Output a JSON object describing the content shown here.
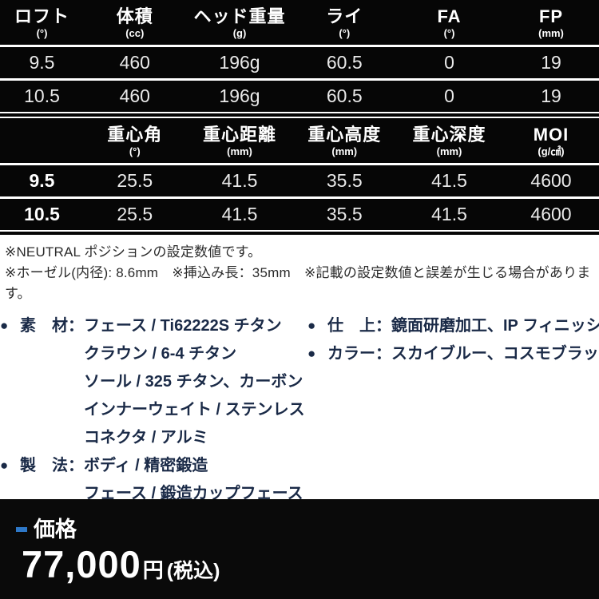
{
  "colors": {
    "table_background": "#060606",
    "table_text": "#e9e9e9",
    "header_text": "#ffffff",
    "row_divider": "#ffffff",
    "note_text": "#2b2b2b",
    "spec_text_navy": "#1a2a47",
    "price_band_background": "#0a0a0a",
    "accent_blue": "#2e78c8"
  },
  "table1": {
    "headers": [
      {
        "label": "ロフト",
        "unit": "(°)"
      },
      {
        "label": "体積",
        "unit": "(cc)"
      },
      {
        "label": "ヘッド重量",
        "unit": "(g)"
      },
      {
        "label": "ライ",
        "unit": "(°)"
      },
      {
        "label": "FA",
        "unit": "(°)"
      },
      {
        "label": "FP",
        "unit": "(mm)"
      }
    ],
    "rows": [
      [
        "9.5",
        "460",
        "196g",
        "60.5",
        "0",
        "19"
      ],
      [
        "10.5",
        "460",
        "196g",
        "60.5",
        "0",
        "19"
      ]
    ]
  },
  "table2": {
    "headers": [
      {
        "label": "",
        "unit": ""
      },
      {
        "label": "重心角",
        "unit": "(°)"
      },
      {
        "label": "重心距離",
        "unit": "(mm)"
      },
      {
        "label": "重心高度",
        "unit": "(mm)"
      },
      {
        "label": "重心深度",
        "unit": "(mm)"
      },
      {
        "label": "MOI",
        "unit": "(g/㎠)"
      }
    ],
    "rows": [
      [
        "9.5",
        "25.5",
        "41.5",
        "35.5",
        "41.5",
        "4600"
      ],
      [
        "10.5",
        "25.5",
        "41.5",
        "35.5",
        "41.5",
        "4600"
      ]
    ]
  },
  "notes": [
    "※NEUTRAL ポジションの設定数値です。",
    "※ホーゼル(内径): 8.6mm　※挿込み長：35mm　※記載の設定数値と誤差が生じる場合があります。"
  ],
  "specs": {
    "left": [
      {
        "bullet": "●",
        "label": "素　材：",
        "text": "フェース / Ti62222S チタン"
      },
      {
        "bullet": "",
        "label": "",
        "text": "クラウン / 6-4 チタン"
      },
      {
        "bullet": "",
        "label": "",
        "text": "ソール / 325 チタン、カーボン"
      },
      {
        "bullet": "",
        "label": "",
        "text": "インナーウェイト / ステンレス"
      },
      {
        "bullet": "",
        "label": "",
        "text": "コネクタ / アルミ"
      },
      {
        "bullet": "●",
        "label": "製　法：",
        "text": "ボディ / 精密鍛造"
      },
      {
        "bullet": "",
        "label": "",
        "text": "フェース / 鍛造カップフェース"
      }
    ],
    "right": [
      {
        "bullet": "●",
        "label": "仕　上：",
        "text": "鏡面研磨加工、IP フィニッシュ"
      },
      {
        "bullet": "●",
        "label": "カラー：",
        "text": "スカイブルー、コスモブラック"
      }
    ]
  },
  "price": {
    "label": "価格",
    "amount": "77,000",
    "currency": "円",
    "tax_note": "(税込)"
  }
}
